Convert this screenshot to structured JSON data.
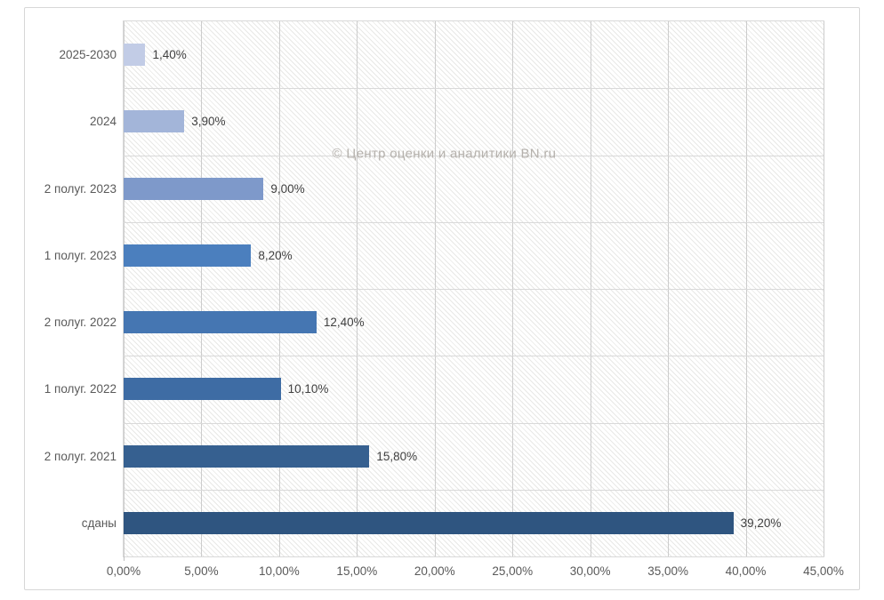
{
  "chart_data": {
    "type": "bar",
    "orientation": "horizontal",
    "title": "",
    "xlabel": "",
    "ylabel": "",
    "xlim": [
      0,
      45
    ],
    "grid": true,
    "legend": false,
    "watermark": "© Центр оценки и аналитики BN.ru",
    "categories": [
      "2025-2030",
      "2024",
      "2 полуг. 2023",
      "1 полуг. 2023",
      "2 полуг. 2022",
      "1 полуг. 2022",
      "2 полуг. 2021",
      "сданы"
    ],
    "values": [
      1.4,
      3.9,
      9.0,
      8.2,
      12.4,
      10.1,
      15.8,
      39.2
    ],
    "data_labels": [
      "1,40%",
      "3,90%",
      "9,00%",
      "8,20%",
      "12,40%",
      "10,10%",
      "15,80%",
      "39,20%"
    ],
    "x_ticks": [
      "0,00%",
      "5,00%",
      "10,00%",
      "15,00%",
      "20,00%",
      "25,00%",
      "30,00%",
      "35,00%",
      "40,00%",
      "45,00%"
    ],
    "x_tick_values": [
      0,
      5,
      10,
      15,
      20,
      25,
      30,
      35,
      40,
      45
    ],
    "bar_colors": [
      "#c2cce6",
      "#a3b5d9",
      "#7e99ca",
      "#4b7fbe",
      "#4576b2",
      "#3e6ca4",
      "#366090",
      "#2f5580"
    ],
    "colors": {
      "gridline_vertical": "#cccccc",
      "gridline_horizontal": "#d9d9d9",
      "plot_border": "#d9d9d9",
      "frame_border": "#d7d7d7",
      "hatch_line": "#e8e8e6",
      "axis_text": "#595959",
      "data_label_text": "#404040",
      "watermark_text": "#b5b1ac",
      "background": "#ffffff"
    }
  }
}
